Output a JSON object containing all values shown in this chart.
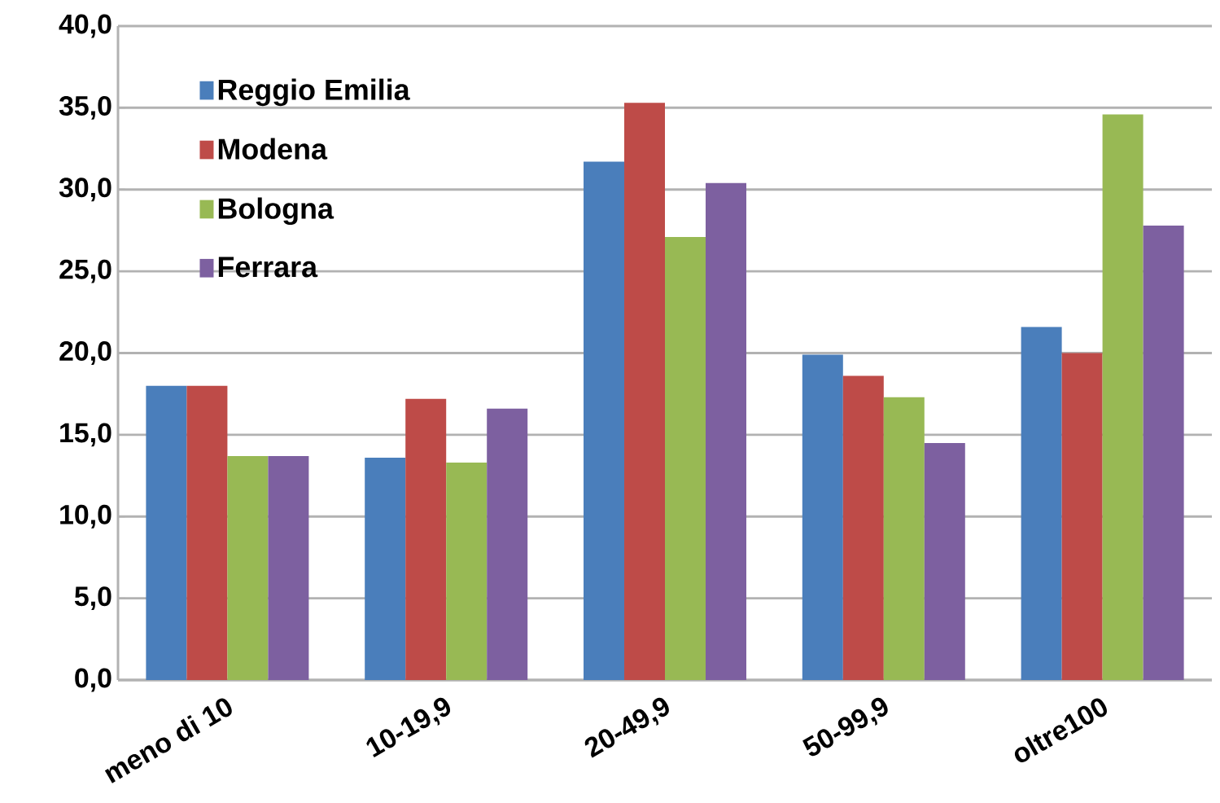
{
  "chart_data": {
    "type": "bar",
    "categories": [
      "meno di 10",
      "10-19,9",
      "20-49,9",
      "50-99,9",
      "oltre100"
    ],
    "series": [
      {
        "name": "Reggio Emilia",
        "color": "#4a7ebb",
        "values": [
          18.0,
          13.6,
          31.7,
          19.9,
          21.6
        ]
      },
      {
        "name": "Modena",
        "color": "#be4b48",
        "values": [
          18.0,
          17.2,
          35.3,
          18.6,
          20.0
        ]
      },
      {
        "name": "Bologna",
        "color": "#98b954",
        "values": [
          13.7,
          13.3,
          27.1,
          17.3,
          34.6
        ]
      },
      {
        "name": "Ferrara",
        "color": "#7d60a0",
        "values": [
          13.7,
          16.6,
          30.4,
          14.5,
          27.8
        ]
      }
    ],
    "ylim": [
      0,
      40
    ],
    "yticks": [
      {
        "value": 0,
        "label": "0,0"
      },
      {
        "value": 5,
        "label": "5,0"
      },
      {
        "value": 10,
        "label": "10,0"
      },
      {
        "value": 15,
        "label": "15,0"
      },
      {
        "value": 20,
        "label": "20,0"
      },
      {
        "value": 25,
        "label": "25,0"
      },
      {
        "value": 30,
        "label": "30,0"
      },
      {
        "value": 35,
        "label": "35,0"
      },
      {
        "value": 40,
        "label": "40,0"
      }
    ],
    "grid": "y",
    "legend": "top left"
  }
}
